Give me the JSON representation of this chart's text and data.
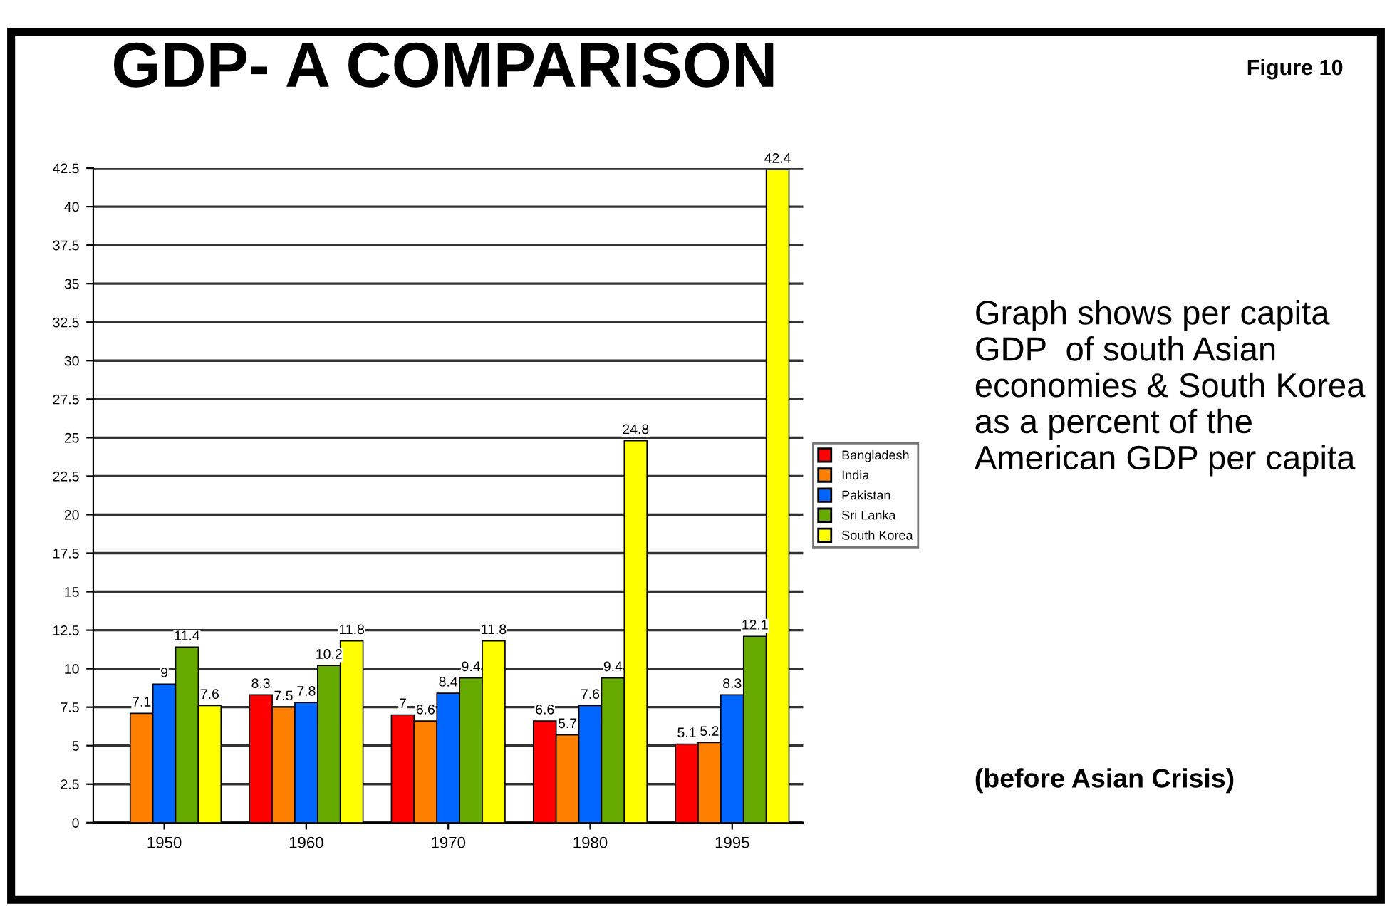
{
  "chart_data": {
    "type": "bar",
    "title": "GDP- A COMPARISON",
    "annotations": [
      "Figure 10",
      "Graph shows per capita GDP  of south Asian economies & South Korea as a percent of the American GDP per capita",
      "(before Asian Crisis)"
    ],
    "categories": [
      "1950",
      "1960",
      "1970",
      "1980",
      "1995"
    ],
    "series": [
      {
        "name": "Bangladesh",
        "color": "#ff0000",
        "values": [
          null,
          8.3,
          7,
          6.6,
          5.1
        ]
      },
      {
        "name": "India",
        "color": "#ff7f00",
        "values": [
          7.1,
          7.5,
          6.6,
          5.7,
          5.2
        ]
      },
      {
        "name": "Pakistan",
        "color": "#0066ff",
        "values": [
          9,
          7.8,
          8.4,
          7.6,
          8.3
        ]
      },
      {
        "name": "Sri Lanka",
        "color": "#66aa00",
        "values": [
          11.4,
          10.2,
          9.4,
          9.4,
          12.1
        ]
      },
      {
        "name": "South Korea",
        "color": "#ffff00",
        "values": [
          7.6,
          11.8,
          11.8,
          24.8,
          42.4
        ]
      }
    ],
    "ylim": [
      0,
      42.5
    ],
    "yticks": [
      0,
      2.5,
      5,
      7.5,
      10,
      12.5,
      15,
      17.5,
      20,
      22.5,
      25,
      27.5,
      30,
      32.5,
      35,
      37.5,
      40,
      42.5
    ],
    "grid": "y",
    "legend": "right",
    "data_labels": true
  }
}
